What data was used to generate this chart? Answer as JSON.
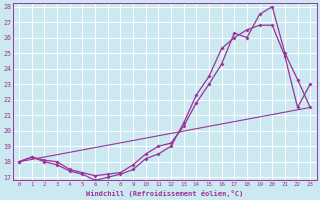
{
  "xlabel": "Windchill (Refroidissement éolien,°C)",
  "bg_color": "#cce8f0",
  "line_color": "#993399",
  "grid_color": "#ffffff",
  "ylim": [
    17,
    28
  ],
  "xlim": [
    -0.5,
    23.5
  ],
  "yticks": [
    17,
    18,
    19,
    20,
    21,
    22,
    23,
    24,
    25,
    26,
    27,
    28
  ],
  "xticks": [
    0,
    1,
    2,
    3,
    4,
    5,
    6,
    7,
    8,
    9,
    10,
    11,
    12,
    13,
    14,
    15,
    16,
    17,
    18,
    19,
    20,
    21,
    22,
    23
  ],
  "line1_x": [
    0,
    1,
    2,
    3,
    4,
    5,
    6,
    7,
    8,
    9,
    10,
    11,
    12,
    13,
    14,
    15,
    16,
    17,
    18,
    19,
    20,
    21,
    22,
    23
  ],
  "line1_y": [
    18.0,
    18.3,
    18.1,
    18.0,
    17.5,
    17.3,
    17.1,
    17.2,
    17.3,
    17.8,
    18.5,
    19.0,
    19.2,
    20.3,
    21.8,
    23.0,
    24.3,
    26.3,
    26.0,
    27.5,
    28.0,
    25.0,
    23.3,
    21.5
  ],
  "line2_x": [
    0,
    1,
    2,
    3,
    4,
    5,
    6,
    7,
    8,
    9,
    10,
    11,
    12,
    13,
    14,
    15,
    16,
    17,
    18,
    19,
    20,
    21,
    22,
    23
  ],
  "line2_y": [
    18.0,
    18.3,
    18.0,
    17.8,
    17.4,
    17.2,
    16.8,
    17.0,
    17.2,
    17.5,
    18.2,
    18.5,
    19.0,
    20.5,
    22.3,
    23.5,
    25.3,
    26.0,
    26.5,
    26.8,
    26.8,
    24.8,
    21.5,
    23.0
  ],
  "line3_x": [
    0,
    23
  ],
  "line3_y": [
    18.0,
    21.5
  ]
}
